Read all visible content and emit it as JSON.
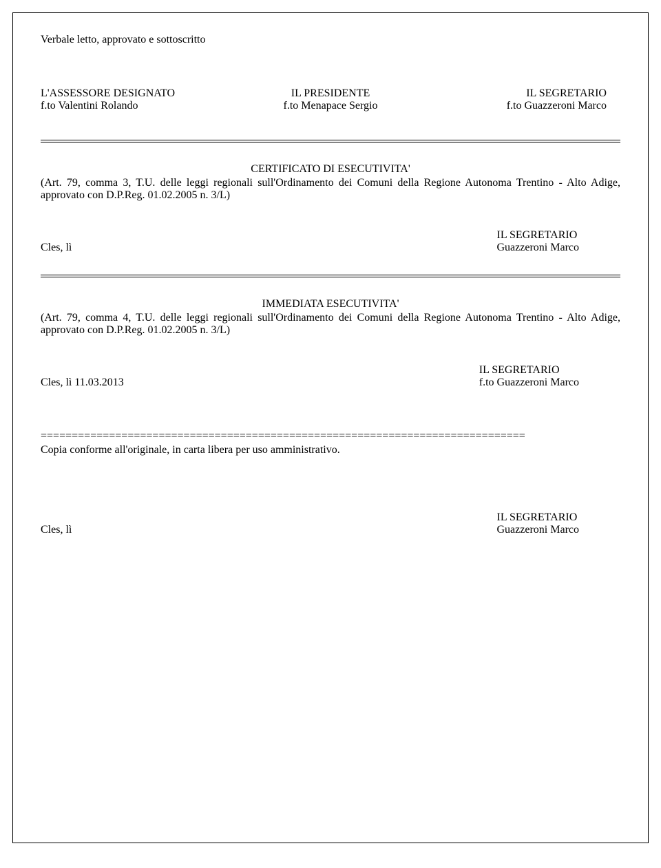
{
  "opening": "Verbale letto, approvato e  sottoscritto",
  "top_signatures": {
    "left_role": "L'ASSESSORE DESIGNATO",
    "left_name": "f.to  Valentini Rolando",
    "center_role": "IL  PRESIDENTE",
    "center_name": "f.to   Menapace Sergio",
    "right_role": "IL SEGRETARIO",
    "right_name": "f.to  Guazzeroni Marco"
  },
  "cert1": {
    "title": "CERTIFICATO DI ESECUTIVITA'",
    "body": "(Art. 79, comma 3, T.U. delle leggi regionali sull'Ordinamento dei Comuni della Regione Autonoma Trentino  - Alto Adige, approvato con D.P.Reg. 01.02.2005 n. 3/L)",
    "left": "Cles, lì",
    "right_role": "IL SEGRETARIO",
    "right_name": "Guazzeroni Marco"
  },
  "cert2": {
    "title": "IMMEDIATA ESECUTIVITA'",
    "body": "(Art. 79, comma 4, T.U. delle leggi regionali sull'Ordinamento dei Comuni della Regione Autonoma Trentino - Alto Adige, approvato con D.P.Reg. 01.02.2005 n. 3/L)",
    "left": "Cles, lì  11.03.2013",
    "right_role": "IL SEGRETARIO",
    "right_name": "f.to   Guazzeroni Marco"
  },
  "divider": "==============================================================================",
  "copia": "Copia conforme all'originale, in carta libera per uso amministrativo.",
  "final": {
    "left": "Cles, lì",
    "right_role": "IL  SEGRETARIO",
    "right_name": "Guazzeroni Marco"
  }
}
